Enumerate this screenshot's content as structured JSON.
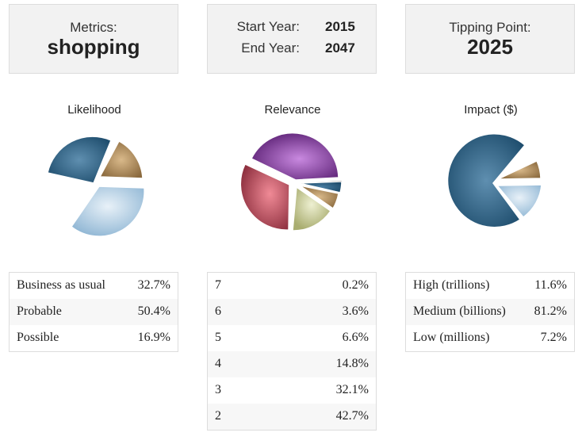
{
  "metrics": {
    "label": "Metrics:",
    "value": "shopping"
  },
  "years": {
    "start_label": "Start Year:",
    "start_value": "2015",
    "end_label": "End Year:",
    "end_value": "2047"
  },
  "tipping": {
    "label": "Tipping Point:",
    "value": "2025"
  },
  "charts": {
    "likelihood": {
      "title": "Likelihood"
    },
    "relevance": {
      "title": "Relevance"
    },
    "impact": {
      "title": "Impact ($)"
    }
  },
  "likelihood_table": [
    {
      "label": "Business as usual",
      "value": "32.7%"
    },
    {
      "label": "Probable",
      "value": "50.4%"
    },
    {
      "label": "Possible",
      "value": "16.9%"
    }
  ],
  "relevance_table": [
    {
      "label": "7",
      "value": "0.2%"
    },
    {
      "label": "6",
      "value": "3.6%"
    },
    {
      "label": "5",
      "value": "6.6%"
    },
    {
      "label": "4",
      "value": "14.8%"
    },
    {
      "label": "3",
      "value": "32.1%"
    },
    {
      "label": "2",
      "value": "42.7%"
    }
  ],
  "impact_table": [
    {
      "label": "High (trillions)",
      "value": "11.6%"
    },
    {
      "label": "Medium (billions)",
      "value": "81.2%"
    },
    {
      "label": "Low (millions)",
      "value": "7.2%"
    }
  ],
  "colors": {
    "blue_dark": "#1f4e6e",
    "blue_light": "#a9c8e0",
    "tan": "#a88458",
    "purple": "#7b3598",
    "red": "#b0485a",
    "olive": "#c8cc98",
    "accent_grey": "#f2f2f2"
  }
}
